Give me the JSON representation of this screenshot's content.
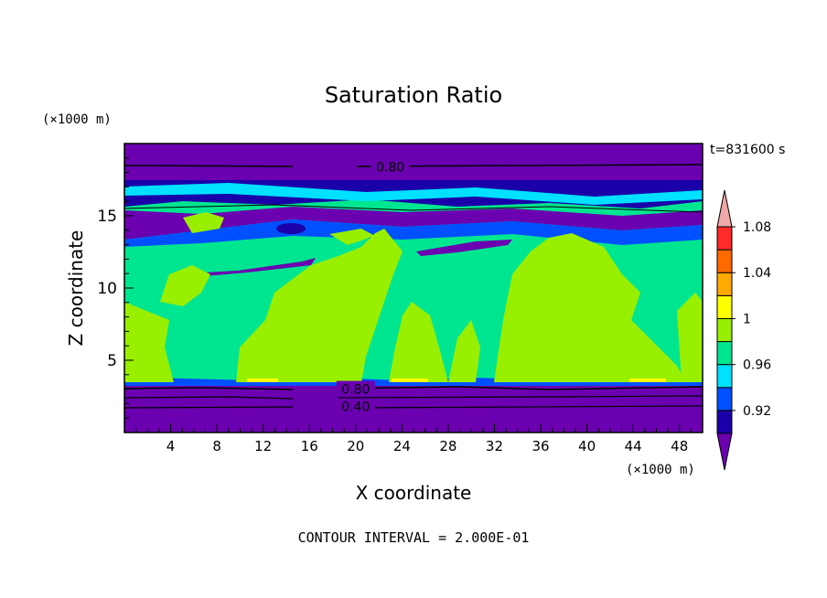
{
  "chart_data": {
    "type": "heatmap",
    "title": "Saturation Ratio",
    "xlabel": "X coordinate",
    "ylabel": "Z coordinate",
    "x_unit": "(×1000 m)",
    "y_unit": "(×1000 m)",
    "time_label": "t=831600 s",
    "footer": "CONTOUR INTERVAL = 2.000E-01",
    "xlim": [
      0,
      50
    ],
    "ylim": [
      0,
      20
    ],
    "x_ticks": [
      4,
      8,
      12,
      16,
      20,
      24,
      28,
      32,
      36,
      40,
      44,
      48
    ],
    "y_ticks": [
      5,
      10,
      15
    ],
    "grid": false,
    "colorbar": {
      "levels": [
        0.92,
        0.94,
        0.96,
        0.98,
        1.0,
        1.02,
        1.04,
        1.06,
        1.08,
        1.1
      ],
      "labels": [
        "0.92",
        "0.96",
        "1",
        "1.04",
        "1.08"
      ],
      "colors": [
        "#6a00b0",
        "#1a00a8",
        "#0050ff",
        "#00e0ff",
        "#00e690",
        "#99ef00",
        "#ffff00",
        "#ffaa00",
        "#ff6a00",
        "#ff2a2a",
        "#f0a8a8"
      ]
    },
    "bands": [
      {
        "z": [
          0,
          3.2
        ],
        "ratio": 0.6,
        "class": "below 0.92"
      },
      {
        "z": [
          3.2,
          3.6
        ],
        "ratio": 0.94,
        "class": "0.92-0.96"
      },
      {
        "z": [
          3.6,
          15.0
        ],
        "ratio": 0.99,
        "class": "0.98-1.0 with patches 1.0-1.02"
      },
      {
        "z": [
          15.0,
          17.2
        ],
        "ratio": 0.95,
        "class": "mixed 0.92-0.98"
      },
      {
        "z": [
          17.2,
          20
        ],
        "ratio": 0.8,
        "class": "below 0.92"
      }
    ],
    "contour_labels": [
      {
        "text": "0.80",
        "x": 23,
        "z": 18.4
      },
      {
        "text": "0.80",
        "x": 20,
        "z": 3.0
      },
      {
        "text": "0.40",
        "x": 20,
        "z": 1.8
      }
    ]
  }
}
